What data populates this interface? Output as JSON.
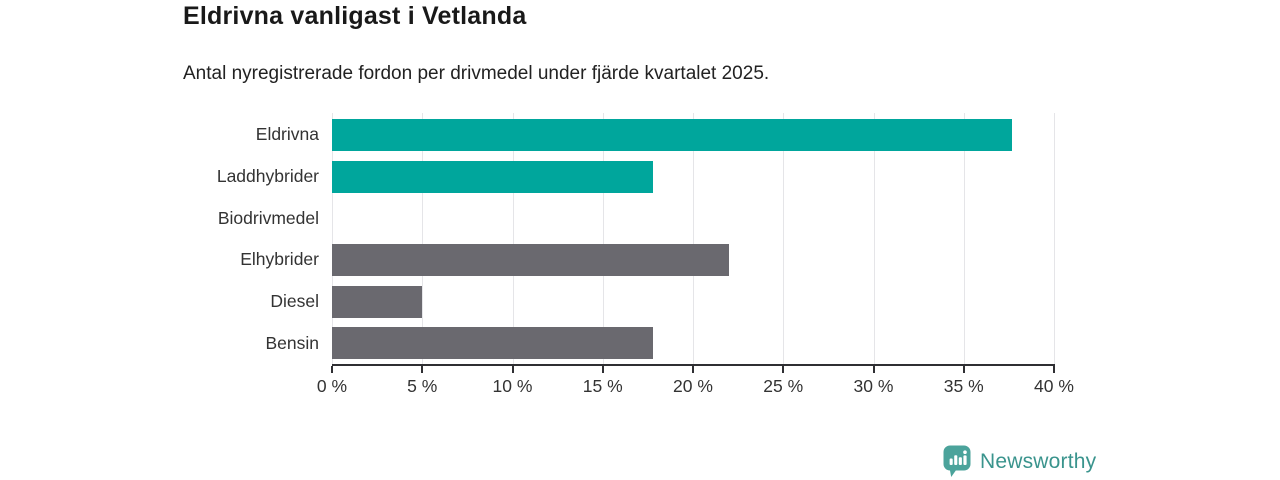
{
  "title": "Eldrivna vanligast i Vetlanda",
  "subtitle": "Antal nyregistrerade fordon per drivmedel under fjärde kvartalet 2025.",
  "chart_data": {
    "type": "bar",
    "orientation": "horizontal",
    "title": "Eldrivna vanligast i Vetlanda",
    "subtitle": "Antal nyregistrerade fordon per drivmedel under fjärde kvartalet 2025.",
    "categories": [
      "Eldrivna",
      "Laddhybrider",
      "Biodrivmedel",
      "Elhybrider",
      "Diesel",
      "Bensin"
    ],
    "values": [
      37.7,
      17.8,
      0,
      22,
      5,
      17.8
    ],
    "unit": "%",
    "xlabel": "",
    "ylabel": "",
    "xlim": [
      0,
      40
    ],
    "x_ticks": [
      0,
      5,
      10,
      15,
      20,
      25,
      30,
      35,
      40
    ],
    "x_tick_labels": [
      "0 %",
      "5 %",
      "10 %",
      "15 %",
      "20 %",
      "25 %",
      "30 %",
      "35 %",
      "40 %"
    ],
    "grid": true,
    "legend": false,
    "bar_colors": [
      "#00A69C",
      "#00A69C",
      "#00A69C",
      "#6A696F",
      "#6A696F",
      "#6A696F"
    ],
    "colors": {
      "electric_accent": "#00A69C",
      "fossil_gray": "#6A696F",
      "gridline": "#E5E5E8",
      "axis": "#2F2F33",
      "label_text": "#333333"
    }
  },
  "branding": {
    "logo_text": "Newsworthy",
    "logo_icon": "newsworthy-bar-chart-bubble-icon",
    "logo_text_color": "#3A948D",
    "logo_icon_color": "#4BA39B"
  }
}
